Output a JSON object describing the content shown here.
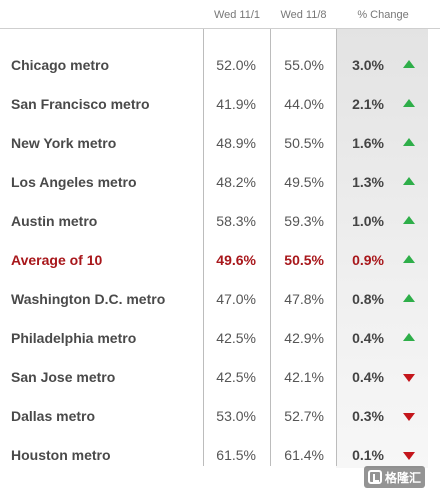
{
  "chart_data": {
    "type": "table",
    "columns": [
      "Wed 11/1",
      "Wed 11/8",
      "% Change"
    ],
    "rows": [
      {
        "name": "Chicago metro",
        "wed_11_1": "52.0%",
        "wed_11_8": "55.0%",
        "change": "3.0%",
        "direction": "up",
        "highlight": false
      },
      {
        "name": "San Francisco metro",
        "wed_11_1": "41.9%",
        "wed_11_8": "44.0%",
        "change": "2.1%",
        "direction": "up",
        "highlight": false
      },
      {
        "name": "New York metro",
        "wed_11_1": "48.9%",
        "wed_11_8": "50.5%",
        "change": "1.6%",
        "direction": "up",
        "highlight": false
      },
      {
        "name": "Los Angeles metro",
        "wed_11_1": "48.2%",
        "wed_11_8": "49.5%",
        "change": "1.3%",
        "direction": "up",
        "highlight": false
      },
      {
        "name": "Austin metro",
        "wed_11_1": "58.3%",
        "wed_11_8": "59.3%",
        "change": "1.0%",
        "direction": "up",
        "highlight": false
      },
      {
        "name": "Average of 10",
        "wed_11_1": "49.6%",
        "wed_11_8": "50.5%",
        "change": "0.9%",
        "direction": "up",
        "highlight": true
      },
      {
        "name": "Washington D.C. metro",
        "wed_11_1": "47.0%",
        "wed_11_8": "47.8%",
        "change": "0.8%",
        "direction": "up",
        "highlight": false
      },
      {
        "name": "Philadelphia metro",
        "wed_11_1": "42.5%",
        "wed_11_8": "42.9%",
        "change": "0.4%",
        "direction": "up",
        "highlight": false
      },
      {
        "name": "San Jose metro",
        "wed_11_1": "42.5%",
        "wed_11_8": "42.1%",
        "change": "0.4%",
        "direction": "down",
        "highlight": false
      },
      {
        "name": "Dallas metro",
        "wed_11_1": "53.0%",
        "wed_11_8": "52.7%",
        "change": "0.3%",
        "direction": "down",
        "highlight": false
      },
      {
        "name": "Houston metro",
        "wed_11_1": "61.5%",
        "wed_11_8": "61.4%",
        "change": "0.1%",
        "direction": "down",
        "highlight": false
      }
    ],
    "colors": {
      "up": "#2eae49",
      "down": "#c4161c",
      "highlight": "#a8171b"
    }
  },
  "watermark": {
    "text": "格隆汇"
  }
}
